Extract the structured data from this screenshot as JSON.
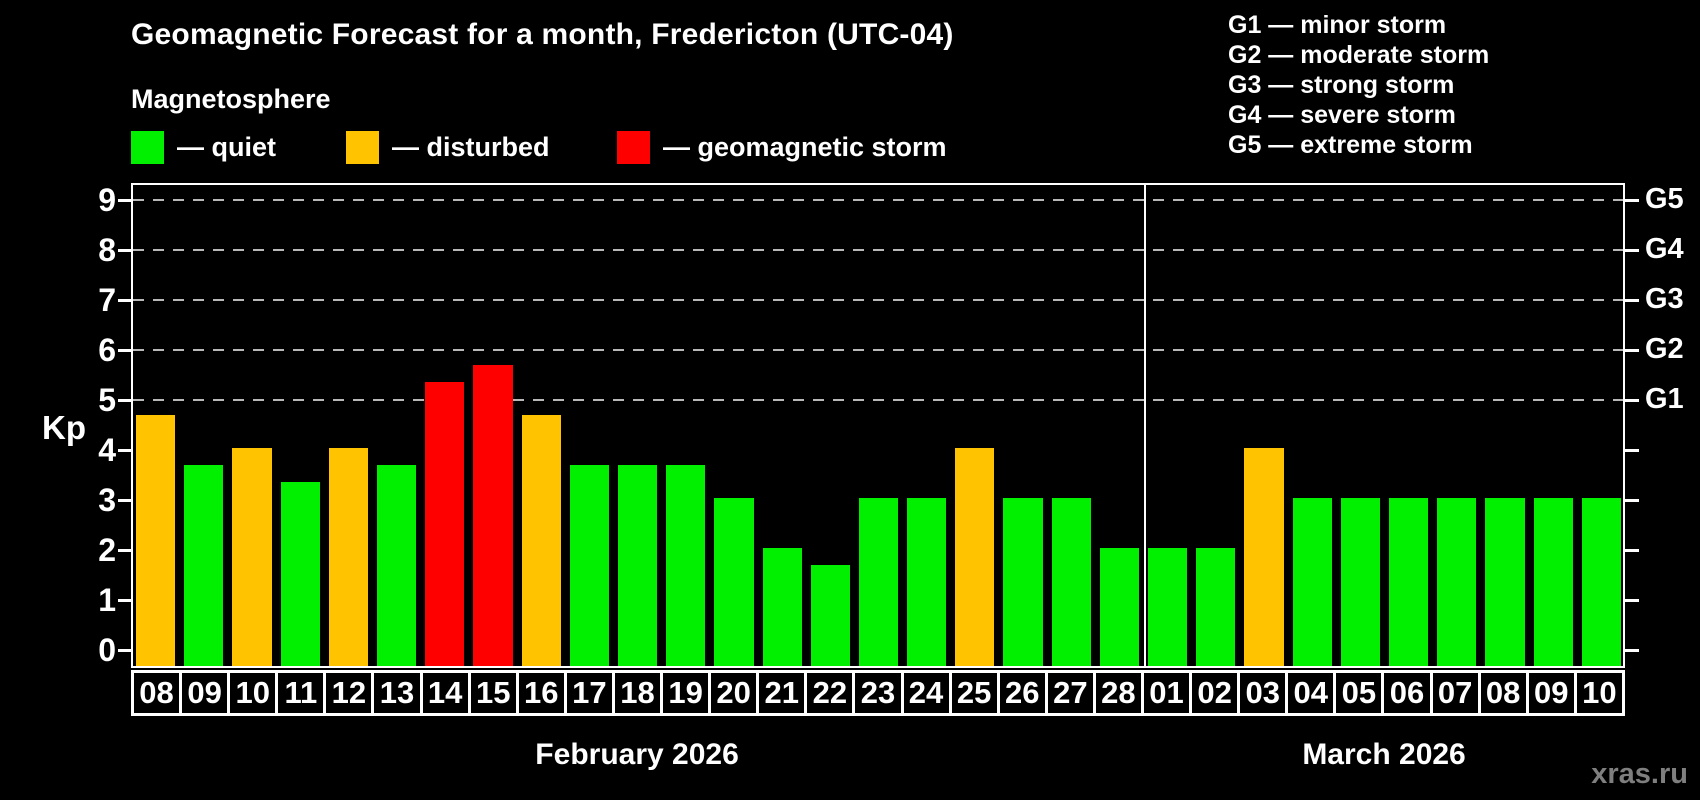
{
  "header": {
    "title": "Geomagnetic Forecast for a month, Fredericton (UTC-04)",
    "subtitle": "Magnetosphere"
  },
  "legend": {
    "items": [
      {
        "key": "quiet",
        "label": "— quiet"
      },
      {
        "key": "disturbed",
        "label": "— disturbed"
      },
      {
        "key": "storm",
        "label": "— geomagnetic storm"
      }
    ]
  },
  "storm_scale": {
    "lines": [
      "G1 — minor storm",
      "G2 — moderate storm",
      "G3 — strong storm",
      "G4 — severe storm",
      "G5 — extreme storm"
    ]
  },
  "axis": {
    "ylabel": "Kp"
  },
  "watermark": "xras.ru",
  "colors": {
    "quiet": "#00F000",
    "disturbed": "#FFC300",
    "storm": "#FF0000",
    "grid": "#B8B8B8",
    "axis": "#FFFFFF",
    "watermark": "#7F7F7F"
  },
  "chart_data": {
    "type": "bar",
    "title": "Geomagnetic Forecast for a month, Fredericton (UTC-04)",
    "xlabel": "",
    "ylabel": "Kp",
    "ylim": [
      -0.35,
      9.35
    ],
    "y_ticks": [
      0,
      1,
      2,
      3,
      4,
      5,
      6,
      7,
      8,
      9
    ],
    "grid": "horizontal dashed at Kp 5-9 (G1-G5 levels)",
    "legend_position": "top-left",
    "categories": [
      "08",
      "09",
      "10",
      "11",
      "12",
      "13",
      "14",
      "15",
      "16",
      "17",
      "18",
      "19",
      "20",
      "21",
      "22",
      "23",
      "24",
      "25",
      "26",
      "27",
      "28",
      "01",
      "02",
      "03",
      "04",
      "05",
      "06",
      "07",
      "08",
      "09",
      "10"
    ],
    "values": [
      4.67,
      3.67,
      4.0,
      3.33,
      4.0,
      3.67,
      5.33,
      5.67,
      4.67,
      3.67,
      3.67,
      3.67,
      3.0,
      2.0,
      1.67,
      3.0,
      3.0,
      4.0,
      3.0,
      3.0,
      2.0,
      2.0,
      2.0,
      4.0,
      3.0,
      3.0,
      3.0,
      3.0,
      3.0,
      3.0,
      3.0
    ],
    "statuses": [
      "disturbed",
      "quiet",
      "disturbed",
      "quiet",
      "disturbed",
      "quiet",
      "storm",
      "storm",
      "disturbed",
      "quiet",
      "quiet",
      "quiet",
      "quiet",
      "quiet",
      "quiet",
      "quiet",
      "quiet",
      "disturbed",
      "quiet",
      "quiet",
      "quiet",
      "quiet",
      "quiet",
      "disturbed",
      "quiet",
      "quiet",
      "quiet",
      "quiet",
      "quiet",
      "quiet",
      "quiet"
    ],
    "months": [
      {
        "label": "February 2026",
        "from": 0,
        "to": 20
      },
      {
        "label": "March 2026",
        "from": 21,
        "to": 30
      }
    ],
    "right_axis": [
      {
        "label": "G1",
        "kp": 5
      },
      {
        "label": "G2",
        "kp": 6
      },
      {
        "label": "G3",
        "kp": 7
      },
      {
        "label": "G4",
        "kp": 8
      },
      {
        "label": "G5",
        "kp": 9
      }
    ]
  }
}
